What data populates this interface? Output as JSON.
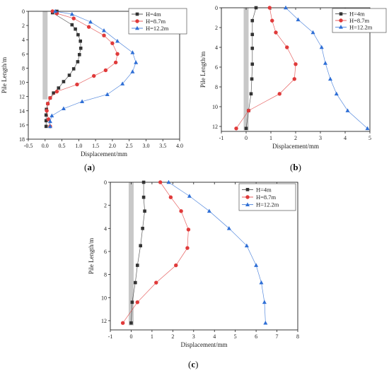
{
  "chart_data": [
    {
      "type": "line",
      "caption_open": "(",
      "caption_letter": "a",
      "caption_close": ")",
      "xlabel": "Displacement/mm",
      "ylabel": "Pile Length/m",
      "xlim": [
        -0.5,
        4.0
      ],
      "ylim": [
        18,
        0
      ],
      "x_ticks": [
        "-0.5",
        "0.0",
        "0.5",
        "1.0",
        "1.5",
        "2.0",
        "2.5",
        "3.0",
        "3.5",
        "4.0"
      ],
      "y_ticks": [
        "0",
        "2",
        "4",
        "6",
        "8",
        "10",
        "12",
        "14",
        "16",
        "18"
      ],
      "legend_position": "top-right",
      "series": [
        {
          "name": "H=4m",
          "color": "#333333",
          "marker": "square",
          "points": [
            [
              0.35,
              0
            ],
            [
              0.22,
              0.2
            ],
            [
              0.8,
              1.9
            ],
            [
              0.9,
              2.5
            ],
            [
              0.98,
              3.3
            ],
            [
              1.05,
              4.2
            ],
            [
              1.06,
              5.2
            ],
            [
              1.02,
              6.1
            ],
            [
              0.97,
              7.1
            ],
            [
              0.85,
              8.1
            ],
            [
              0.72,
              9.0
            ],
            [
              0.55,
              9.9
            ],
            [
              0.4,
              10.8
            ],
            [
              0.25,
              11.5
            ],
            [
              0.15,
              12.2
            ],
            [
              0.08,
              13.0
            ],
            [
              0.04,
              13.8
            ],
            [
              0.03,
              14.6
            ],
            [
              0.03,
              15.4
            ],
            [
              0.03,
              16.2
            ]
          ]
        },
        {
          "name": "H=8.7m",
          "color": "#e03a3a",
          "marker": "circle",
          "points": [
            [
              0.22,
              0
            ],
            [
              0.35,
              0.3
            ],
            [
              0.85,
              1.0
            ],
            [
              1.3,
              2.2
            ],
            [
              1.75,
              3.4
            ],
            [
              2.0,
              4.5
            ],
            [
              2.15,
              6.0
            ],
            [
              2.1,
              7.2
            ],
            [
              1.8,
              8.3
            ],
            [
              1.45,
              9.1
            ],
            [
              0.95,
              10.3
            ],
            [
              0.35,
              11.3
            ],
            [
              0.15,
              12.2
            ],
            [
              0.08,
              13.0
            ],
            [
              0.05,
              14.0
            ],
            [
              0.1,
              15.2
            ],
            [
              0.15,
              16.2
            ]
          ]
        },
        {
          "name": "H=12.2m",
          "color": "#2f6fd6",
          "marker": "triangle",
          "points": [
            [
              0.3,
              0
            ],
            [
              0.8,
              0.4
            ],
            [
              1.35,
              1.5
            ],
            [
              1.75,
              2.7
            ],
            [
              2.15,
              4.2
            ],
            [
              2.6,
              5.8
            ],
            [
              2.7,
              7.2
            ],
            [
              2.6,
              8.5
            ],
            [
              2.3,
              10.2
            ],
            [
              1.85,
              11.7
            ],
            [
              1.1,
              12.7
            ],
            [
              0.55,
              13.7
            ],
            [
              0.2,
              14.7
            ],
            [
              0.15,
              15.5
            ],
            [
              0.15,
              16.2
            ]
          ]
        }
      ]
    },
    {
      "type": "line",
      "caption_open": "(",
      "caption_letter": "b",
      "caption_close": ")",
      "xlabel": "Displacement/mm",
      "ylabel": "Pile Length/m",
      "xlim": [
        -1,
        5
      ],
      "ylim": [
        12.5,
        0
      ],
      "x_ticks": [
        "-1",
        "0",
        "1",
        "2",
        "3",
        "4",
        "5"
      ],
      "y_ticks": [
        "0",
        "2",
        "4",
        "6",
        "8",
        "10",
        "12"
      ],
      "legend_position": "top-right",
      "series": [
        {
          "name": "H=4m",
          "color": "#333333",
          "marker": "square",
          "points": [
            [
              0.4,
              0
            ],
            [
              0.25,
              1.3
            ],
            [
              0.25,
              2.7
            ],
            [
              0.25,
              4.1
            ],
            [
              0.25,
              5.7
            ],
            [
              0.23,
              7.2
            ],
            [
              0.2,
              8.7
            ],
            [
              0.1,
              10.4
            ],
            [
              0.0,
              12.2
            ]
          ]
        },
        {
          "name": "H=8.7m",
          "color": "#e03a3a",
          "marker": "circle",
          "points": [
            [
              0.95,
              0
            ],
            [
              1.05,
              1.3
            ],
            [
              1.2,
              2.5
            ],
            [
              1.65,
              4.0
            ],
            [
              2.0,
              5.7
            ],
            [
              1.95,
              7.2
            ],
            [
              1.35,
              8.7
            ],
            [
              0.1,
              10.4
            ],
            [
              -0.4,
              12.2
            ]
          ]
        },
        {
          "name": "H=12.2m",
          "color": "#2f6fd6",
          "marker": "triangle",
          "points": [
            [
              1.6,
              0
            ],
            [
              2.1,
              1.2
            ],
            [
              2.7,
              2.5
            ],
            [
              3.05,
              4.0
            ],
            [
              3.2,
              5.6
            ],
            [
              3.4,
              7.2
            ],
            [
              3.65,
              8.7
            ],
            [
              4.1,
              10.4
            ],
            [
              4.9,
              12.2
            ]
          ]
        }
      ]
    },
    {
      "type": "line",
      "caption_open": "(",
      "caption_letter": "c",
      "caption_close": ")",
      "xlabel": "Displacement/mm",
      "ylabel": "Pile Length/m",
      "xlim": [
        -1,
        8
      ],
      "ylim": [
        12.8,
        0
      ],
      "x_ticks": [
        "-1",
        "0",
        "1",
        "2",
        "3",
        "4",
        "5",
        "6",
        "7",
        "8"
      ],
      "y_ticks": [
        "0",
        "2",
        "4",
        "6",
        "8",
        "10",
        "12"
      ],
      "legend_position": "top-right",
      "series": [
        {
          "name": "H=4m",
          "color": "#333333",
          "marker": "square",
          "points": [
            [
              0.6,
              0
            ],
            [
              0.6,
              1.3
            ],
            [
              0.65,
              2.5
            ],
            [
              0.55,
              4.0
            ],
            [
              0.45,
              5.5
            ],
            [
              0.3,
              7.2
            ],
            [
              0.2,
              8.7
            ],
            [
              0.05,
              10.4
            ],
            [
              0.0,
              12.2
            ]
          ]
        },
        {
          "name": "H=8.7m",
          "color": "#e03a3a",
          "marker": "circle",
          "points": [
            [
              1.4,
              0
            ],
            [
              1.9,
              1.3
            ],
            [
              2.4,
              2.5
            ],
            [
              2.75,
              4.1
            ],
            [
              2.7,
              5.7
            ],
            [
              2.15,
              7.2
            ],
            [
              1.2,
              8.7
            ],
            [
              0.3,
              10.4
            ],
            [
              -0.4,
              12.2
            ]
          ]
        },
        {
          "name": "H=12.2m",
          "color": "#2f6fd6",
          "marker": "triangle",
          "points": [
            [
              1.8,
              0
            ],
            [
              2.8,
              1.2
            ],
            [
              3.75,
              2.5
            ],
            [
              4.7,
              4.0
            ],
            [
              5.55,
              5.5
            ],
            [
              6.0,
              7.2
            ],
            [
              6.25,
              8.7
            ],
            [
              6.4,
              10.4
            ],
            [
              6.45,
              12.2
            ]
          ]
        }
      ]
    }
  ]
}
